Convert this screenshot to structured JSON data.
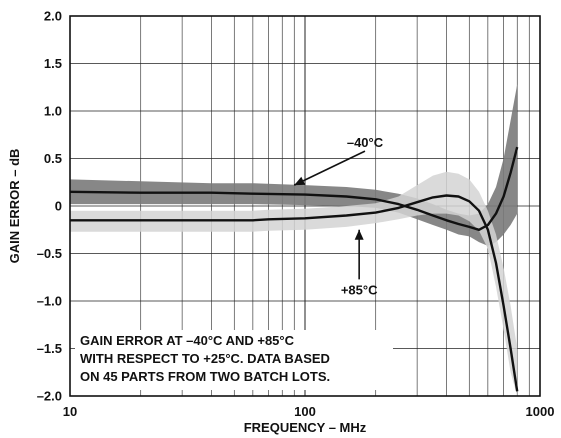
{
  "chart_data": {
    "type": "line",
    "title": "",
    "xlabel": "FREQUENCY – MHz",
    "ylabel": "GAIN ERROR – dB",
    "x_scale": "log",
    "xlim": [
      10,
      1000
    ],
    "ylim": [
      -2.0,
      2.0
    ],
    "x_ticks": [
      10,
      100,
      1000
    ],
    "x_tick_labels": [
      "10",
      "100",
      "1000"
    ],
    "y_ticks": [
      2.0,
      1.5,
      1.0,
      0.5,
      0,
      -0.5,
      -1.0,
      -1.5,
      -2.0
    ],
    "y_tick_labels": [
      "2.0",
      "1.5",
      "1.0",
      "0.5",
      "0",
      "–0.5",
      "–1.0",
      "–1.5",
      "–2.0"
    ],
    "grid": true,
    "series": [
      {
        "name": "–40°C",
        "color": "#111111",
        "band_color": "#7a7a7a",
        "x": [
          10,
          20,
          40,
          60,
          100,
          150,
          200,
          250,
          300,
          350,
          400,
          450,
          500,
          550,
          600,
          650,
          700,
          750,
          800
        ],
        "y": [
          0.15,
          0.14,
          0.14,
          0.13,
          0.12,
          0.1,
          0.07,
          0.02,
          -0.04,
          -0.1,
          -0.15,
          -0.19,
          -0.22,
          -0.25,
          -0.2,
          -0.08,
          0.1,
          0.35,
          0.62
        ],
        "band_upper": [
          0.28,
          0.26,
          0.24,
          0.24,
          0.22,
          0.2,
          0.17,
          0.13,
          0.08,
          0.02,
          -0.04,
          -0.08,
          -0.1,
          -0.08,
          0.02,
          0.2,
          0.5,
          0.9,
          1.28
        ],
        "band_lower": [
          0.02,
          0.02,
          0.02,
          0.02,
          0.01,
          0.0,
          -0.02,
          -0.07,
          -0.14,
          -0.2,
          -0.25,
          -0.3,
          -0.32,
          -0.38,
          -0.42,
          -0.38,
          -0.3,
          -0.2,
          -0.08
        ]
      },
      {
        "name": "+85°C",
        "color": "#111111",
        "band_color": "#d3d3d3",
        "x": [
          10,
          20,
          40,
          60,
          70,
          100,
          150,
          200,
          250,
          300,
          350,
          400,
          450,
          500,
          550,
          600,
          650,
          700,
          750,
          800
        ],
        "y": [
          -0.15,
          -0.15,
          -0.15,
          -0.15,
          -0.14,
          -0.13,
          -0.1,
          -0.07,
          -0.02,
          0.04,
          0.09,
          0.11,
          0.1,
          0.05,
          -0.05,
          -0.25,
          -0.6,
          -1.05,
          -1.5,
          -1.95
        ],
        "band_upper": [
          -0.05,
          -0.05,
          -0.05,
          -0.05,
          -0.04,
          -0.03,
          0.0,
          0.03,
          0.1,
          0.22,
          0.32,
          0.36,
          0.34,
          0.28,
          0.15,
          -0.05,
          -0.3,
          -0.65,
          -1.05,
          -1.5
        ],
        "band_lower": [
          -0.27,
          -0.27,
          -0.27,
          -0.27,
          -0.26,
          -0.25,
          -0.22,
          -0.18,
          -0.14,
          -0.1,
          -0.08,
          -0.08,
          -0.1,
          -0.16,
          -0.26,
          -0.45,
          -0.85,
          -1.3,
          -1.75,
          -2.0
        ]
      }
    ],
    "annotations": [
      {
        "text": "–40°C",
        "label_x": 180,
        "label_y": 0.62,
        "arrow_to_x": 90,
        "arrow_to_y": 0.22
      },
      {
        "text": "+85°C",
        "label_x": 170,
        "label_y": -0.93,
        "arrow_to_x": 170,
        "arrow_to_y": -0.25
      }
    ],
    "note": [
      "GAIN ERROR AT –40°C AND +85°C",
      "WITH RESPECT TO +25°C. DATA BASED",
      "ON 45 PARTS FROM TWO BATCH LOTS."
    ]
  }
}
